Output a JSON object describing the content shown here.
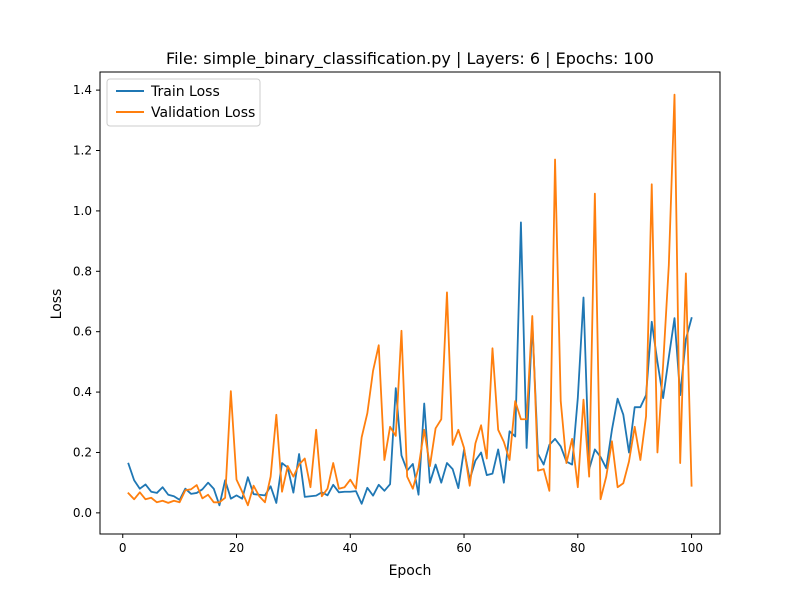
{
  "chart_data": {
    "type": "line",
    "title": "File: simple_binary_classification.py | Layers: 6 | Epochs: 100",
    "xlabel": "Epoch",
    "ylabel": "Loss",
    "xlim": [
      -4,
      105
    ],
    "ylim": [
      -0.07,
      1.46
    ],
    "xticks": [
      0,
      20,
      40,
      60,
      80,
      100
    ],
    "yticks": [
      0.0,
      0.2,
      0.4,
      0.6,
      0.8,
      1.0,
      1.2,
      1.4
    ],
    "xtick_labels": [
      "0",
      "20",
      "40",
      "60",
      "80",
      "100"
    ],
    "ytick_labels": [
      "0.0",
      "0.2",
      "0.4",
      "0.6",
      "0.8",
      "1.0",
      "1.2",
      "1.4"
    ],
    "grid": false,
    "legend_position": "top-left",
    "x": [
      1,
      2,
      3,
      4,
      5,
      6,
      7,
      8,
      9,
      10,
      11,
      12,
      13,
      14,
      15,
      16,
      17,
      18,
      19,
      20,
      21,
      22,
      23,
      24,
      25,
      26,
      27,
      28,
      29,
      30,
      31,
      32,
      33,
      34,
      35,
      36,
      37,
      38,
      39,
      40,
      41,
      42,
      43,
      44,
      45,
      46,
      47,
      48,
      49,
      50,
      51,
      52,
      53,
      54,
      55,
      56,
      57,
      58,
      59,
      60,
      61,
      62,
      63,
      64,
      65,
      66,
      67,
      68,
      69,
      70,
      71,
      72,
      73,
      74,
      75,
      76,
      77,
      78,
      79,
      80,
      81,
      82,
      83,
      84,
      85,
      86,
      87,
      88,
      89,
      90,
      91,
      92,
      93,
      94,
      95,
      96,
      97,
      98,
      99,
      100
    ],
    "series": [
      {
        "name": "Train Loss",
        "color": "#1f77b4",
        "values": [
          0.163,
          0.108,
          0.08,
          0.094,
          0.07,
          0.066,
          0.085,
          0.06,
          0.055,
          0.043,
          0.08,
          0.063,
          0.066,
          0.078,
          0.1,
          0.08,
          0.025,
          0.108,
          0.047,
          0.058,
          0.047,
          0.118,
          0.062,
          0.06,
          0.058,
          0.088,
          0.033,
          0.165,
          0.15,
          0.067,
          0.195,
          0.053,
          0.055,
          0.057,
          0.068,
          0.058,
          0.093,
          0.068,
          0.07,
          0.07,
          0.072,
          0.03,
          0.083,
          0.057,
          0.093,
          0.073,
          0.095,
          0.413,
          0.19,
          0.14,
          0.162,
          0.06,
          0.362,
          0.1,
          0.16,
          0.1,
          0.165,
          0.145,
          0.082,
          0.21,
          0.11,
          0.173,
          0.2,
          0.125,
          0.13,
          0.21,
          0.1,
          0.27,
          0.253,
          0.962,
          0.215,
          0.63,
          0.195,
          0.16,
          0.225,
          0.245,
          0.22,
          0.17,
          0.16,
          0.38,
          0.713,
          0.145,
          0.21,
          0.185,
          0.148,
          0.275,
          0.378,
          0.325,
          0.2,
          0.35,
          0.35,
          0.39,
          0.633,
          0.5,
          0.38,
          0.515,
          0.645,
          0.39,
          0.575,
          0.645
        ]
      },
      {
        "name": "Validation Loss",
        "color": "#ff7f0e",
        "values": [
          0.065,
          0.045,
          0.068,
          0.045,
          0.05,
          0.035,
          0.04,
          0.033,
          0.04,
          0.035,
          0.075,
          0.078,
          0.092,
          0.048,
          0.06,
          0.035,
          0.035,
          0.05,
          0.403,
          0.11,
          0.07,
          0.025,
          0.09,
          0.055,
          0.035,
          0.12,
          0.325,
          0.07,
          0.155,
          0.12,
          0.16,
          0.18,
          0.085,
          0.275,
          0.055,
          0.08,
          0.165,
          0.08,
          0.085,
          0.11,
          0.08,
          0.25,
          0.33,
          0.47,
          0.555,
          0.175,
          0.285,
          0.255,
          0.603,
          0.12,
          0.08,
          0.15,
          0.275,
          0.155,
          0.28,
          0.31,
          0.73,
          0.225,
          0.275,
          0.215,
          0.09,
          0.23,
          0.29,
          0.18,
          0.545,
          0.275,
          0.235,
          0.175,
          0.37,
          0.31,
          0.31,
          0.652,
          0.14,
          0.145,
          0.073,
          1.17,
          0.37,
          0.165,
          0.245,
          0.085,
          0.375,
          0.12,
          1.057,
          0.045,
          0.12,
          0.237,
          0.085,
          0.098,
          0.17,
          0.285,
          0.175,
          0.32,
          1.088,
          0.2,
          0.49,
          0.82,
          1.385,
          0.165,
          0.793,
          0.09
        ]
      }
    ]
  }
}
